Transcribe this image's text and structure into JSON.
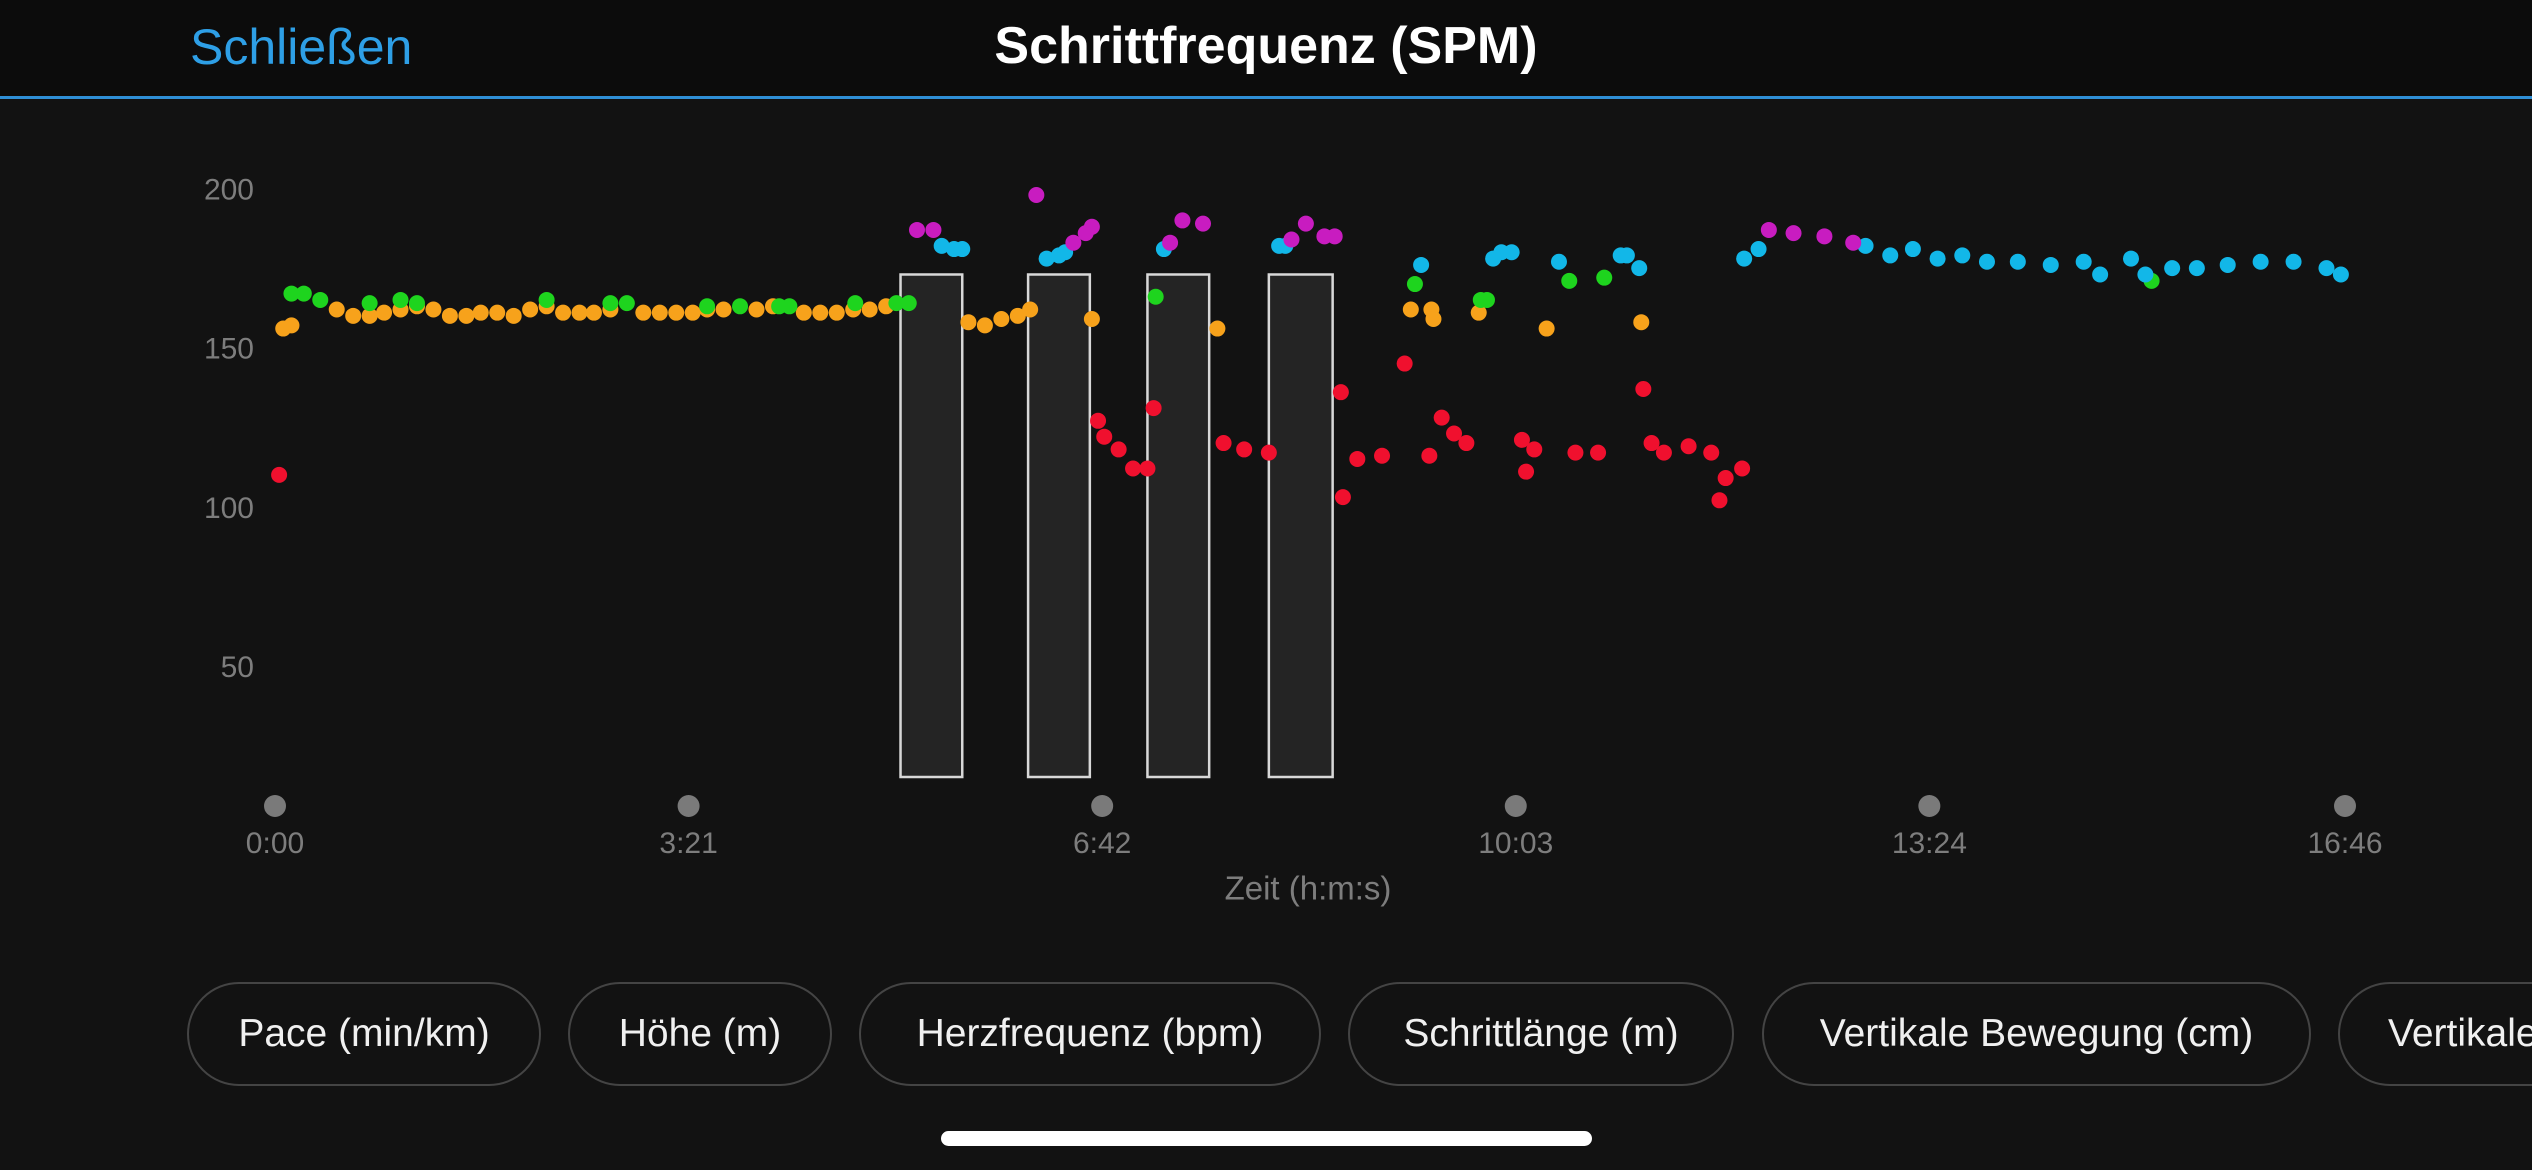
{
  "header": {
    "close": "Schließen"
  },
  "chart_data": {
    "type": "scatter",
    "title": "Schrittfrequenz (SPM)",
    "x_label": "Zeit (h:m:s)",
    "xlim": [
      0,
      1006
    ],
    "ylim": [
      16,
      210
    ],
    "xticks": [
      {
        "value": 0,
        "label": "0:00"
      },
      {
        "value": 201,
        "label": "3:21"
      },
      {
        "value": 402,
        "label": "6:42"
      },
      {
        "value": 603,
        "label": "10:03"
      },
      {
        "value": 804,
        "label": "13:24"
      },
      {
        "value": 1006,
        "label": "16:46"
      }
    ],
    "yticks": [
      50,
      100,
      150,
      200
    ],
    "intervals": {
      "x_start": [
        304,
        366,
        424,
        483
      ],
      "x_end": [
        334,
        396,
        454,
        514
      ],
      "values": [
        174,
        174,
        174,
        174
      ],
      "color": "#242424"
    },
    "series": [
      {
        "color": "#f7a21b",
        "x": [
          4,
          8,
          30,
          38,
          46,
          53,
          61,
          69,
          77,
          85,
          93,
          100,
          108,
          116,
          124,
          132,
          140,
          148,
          155,
          163,
          179,
          187,
          195,
          203,
          210,
          218,
          234,
          242,
          257,
          265,
          273,
          281,
          289,
          297,
          337,
          345,
          353,
          361,
          367,
          397,
          458,
          552,
          562,
          563,
          585,
          618,
          664
        ],
        "values": [
          157,
          158,
          163,
          161,
          161,
          162,
          163,
          164,
          163,
          161,
          161,
          162,
          162,
          161,
          163,
          164,
          162,
          162,
          162,
          163,
          162,
          162,
          162,
          162,
          163,
          163,
          163,
          164,
          162,
          162,
          162,
          163,
          163,
          164,
          159,
          158,
          160,
          161,
          163,
          160,
          157,
          163,
          163,
          160,
          162,
          157,
          159
        ]
      },
      {
        "color": "#1ed41e",
        "x": [
          8,
          14,
          22,
          46,
          61,
          69,
          132,
          163,
          171,
          210,
          226,
          245,
          250,
          282,
          302,
          308,
          428,
          554,
          586,
          589,
          629,
          646,
          912
        ],
        "values": [
          168,
          168,
          166,
          165,
          166,
          165,
          166,
          165,
          165,
          164,
          164,
          164,
          164,
          165,
          165,
          165,
          167,
          171,
          166,
          166,
          172,
          173,
          172
        ]
      },
      {
        "color": "#12b7e8",
        "x": [
          324,
          330,
          334,
          375,
          381,
          384,
          432,
          488,
          491,
          557,
          592,
          596,
          601,
          624,
          654,
          657,
          663,
          714,
          721,
          773,
          785,
          796,
          808,
          820,
          832,
          847,
          863,
          879,
          887,
          902,
          909,
          922,
          934,
          949,
          965,
          981,
          997,
          1004
        ],
        "values": [
          183,
          182,
          182,
          179,
          180,
          181,
          182,
          183,
          183,
          177,
          179,
          181,
          181,
          178,
          180,
          180,
          176,
          179,
          182,
          183,
          180,
          182,
          179,
          180,
          178,
          178,
          177,
          178,
          174,
          179,
          174,
          176,
          176,
          177,
          178,
          178,
          176,
          174
        ]
      },
      {
        "color": "#c81cc0",
        "x": [
          312,
          320,
          370,
          388,
          394,
          397,
          435,
          441,
          451,
          494,
          501,
          510,
          515,
          726,
          738,
          753,
          767
        ],
        "values": [
          188,
          188,
          199,
          184,
          187,
          189,
          184,
          191,
          190,
          185,
          190,
          186,
          186,
          188,
          187,
          186,
          184
        ]
      },
      {
        "color": "#f0102e",
        "x": [
          2,
          400,
          403,
          410,
          417,
          424,
          427,
          461,
          471,
          483,
          518,
          519,
          526,
          538,
          549,
          561,
          567,
          573,
          579,
          606,
          608,
          612,
          632,
          643,
          665,
          669,
          675,
          687,
          698,
          702,
          705,
          713
        ],
        "values": [
          111,
          128,
          123,
          119,
          113,
          113,
          132,
          121,
          119,
          118,
          137,
          104,
          116,
          117,
          146,
          117,
          129,
          124,
          121,
          122,
          112,
          119,
          118,
          118,
          138,
          121,
          118,
          120,
          118,
          103,
          110,
          113
        ]
      }
    ]
  },
  "buttons": [
    "Pace (min/km)",
    "Höhe (m)",
    "Herzfrequenz (bpm)",
    "Schrittlänge (m)",
    "Vertikale Bewegung (cm)",
    "Vertikale"
  ]
}
